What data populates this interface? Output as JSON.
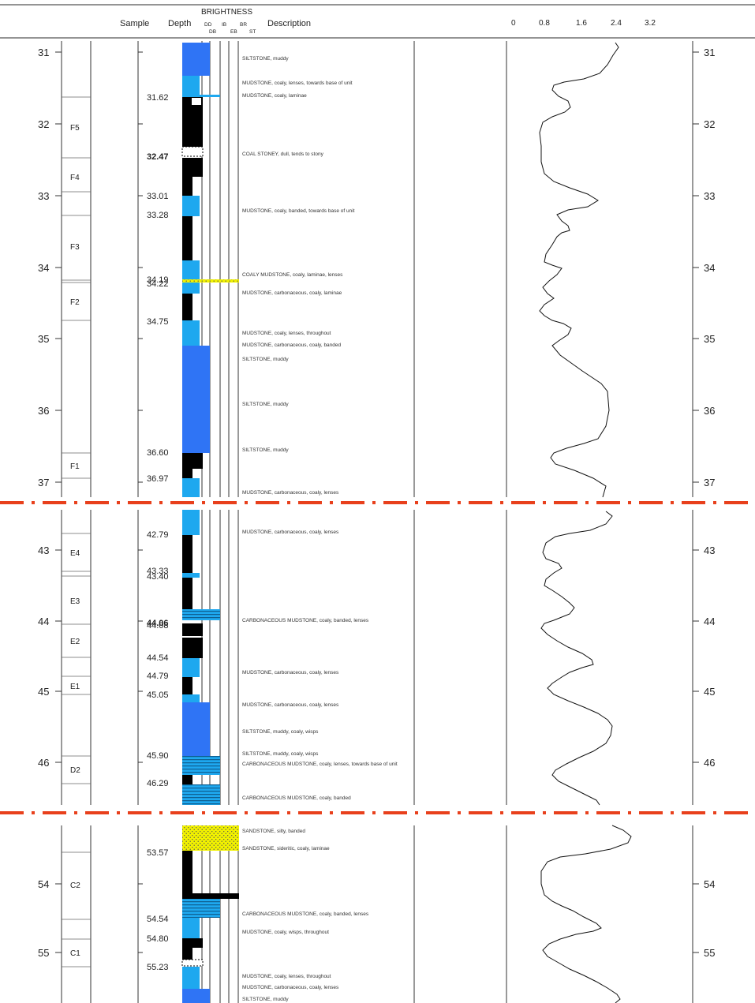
{
  "header": {
    "sample": "Sample",
    "depth": "Depth",
    "brightness": "BRIGHTNESS",
    "brightness_codes_top": [
      "DD",
      "IB",
      "BR"
    ],
    "brightness_codes_bottom": [
      "DB",
      "EB",
      "ST"
    ],
    "description": "Description",
    "curve_scale": [
      "0",
      "0.8",
      "1.6",
      "2.4",
      "3.2"
    ]
  },
  "colors": {
    "black": "#000000",
    "bright_blue": "#1ea8ef",
    "dark_blue": "#2f74f5",
    "yellow": "#f2f200",
    "break_line": "#e8401c"
  },
  "sections": [
    {
      "id": "section-1",
      "depth_ticks": [
        "31",
        "32",
        "33",
        "34",
        "35",
        "36",
        "37"
      ],
      "samples": [
        "F5",
        "F4",
        "F3",
        "F2",
        "F1"
      ],
      "sample_depths": [
        "31.62",
        "32.47",
        "33.01",
        "33.28",
        "34.19",
        "34.22",
        "34.75",
        "36.60",
        "36.97"
      ],
      "descriptions": [
        "SILTSTONE, muddy",
        "MUDSTONE, coaly, lenses, towards base of unit",
        "MUDSTONE, coaly, laminae",
        "COAL STONEY, dull, tends to stony",
        "MUDSTONE, coaly, banded, towards base of unit",
        "COALY MUDSTONE, coaly, laminae, lenses",
        "MUDSTONE, carbonaceous, coaly, laminae",
        "MUDSTONE, coaly, lenses, throughout",
        "MUDSTONE, carbonaceous, coaly, banded",
        "SILTSTONE, muddy",
        "SILTSTONE, muddy",
        "SILTSTONE, muddy",
        "MUDSTONE, carbonaceous, coaly, lenses"
      ]
    },
    {
      "id": "section-2",
      "depth_ticks": [
        "43",
        "44",
        "45",
        "46"
      ],
      "samples": [
        "E4",
        "E3",
        "E2",
        "E1",
        "D2"
      ],
      "sample_depths": [
        "42.79",
        "43.33",
        "43.40",
        "44.06",
        "44.08",
        "44.54",
        "44.79",
        "45.05",
        "45.90",
        "46.29"
      ],
      "descriptions": [
        "MUDSTONE, carbonaceous, coaly, lenses",
        "CARBONACEOUS MUDSTONE, coaly, banded, lenses",
        "MUDSTONE, carbonaceous, coaly, lenses",
        "MUDSTONE, carbonaceous, coaly, lenses",
        "SILTSTONE, muddy, coaly, wisps",
        "SILTSTONE, muddy, coaly, wisps",
        "CARBONACEOUS MUDSTONE, coaly, lenses, towards base of unit",
        "CARBONACEOUS MUDSTONE, coaly, banded"
      ]
    },
    {
      "id": "section-3",
      "depth_ticks": [
        "54",
        "55"
      ],
      "samples": [
        "C2",
        "C1"
      ],
      "sample_depths": [
        "53.57",
        "54.54",
        "54.80",
        "55.23"
      ],
      "descriptions": [
        "SANDSTONE, silty, banded",
        "SANDSTONE, sideritic, coaly, laminae",
        "CARBONACEOUS MUDSTONE, coaly, banded, lenses",
        "MUDSTONE, coaly, wisps, throughout",
        "MUDSTONE, coaly, lenses, throughout",
        "MUDSTONE, carbonaceous, coaly, lenses",
        "SILTSTONE, muddy"
      ]
    }
  ]
}
